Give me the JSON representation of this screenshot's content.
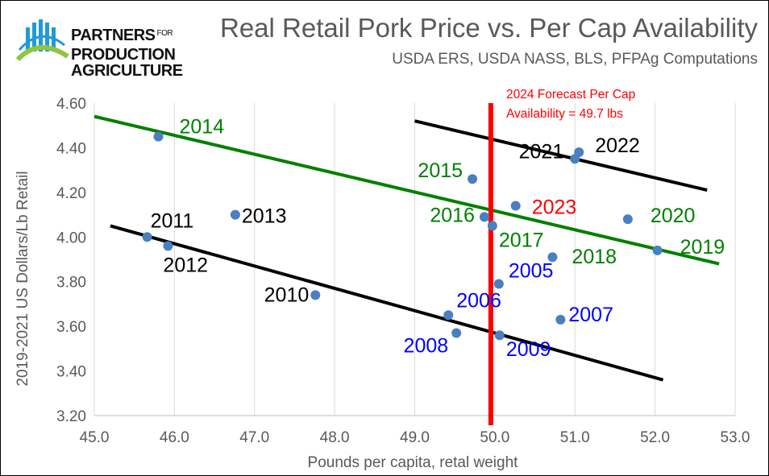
{
  "brand": {
    "line1": "PARTNERS",
    "for": "FOR",
    "line2": "PRODUCTION",
    "line3": "AGRICULTURE"
  },
  "chart_data": {
    "type": "scatter",
    "title": "Real Retail Pork Price vs. Per Cap Availability",
    "subtitle": "USDA ERS, USDA NASS, BLS, PFPAg Computations",
    "xlabel": "Pounds per capita, retal weight",
    "ylabel": "2019-2021  US Dollars/Lb Retail",
    "xlim": [
      45.0,
      53.0
    ],
    "ylim": [
      3.2,
      4.6
    ],
    "xticks": [
      "45.0",
      "46.0",
      "47.0",
      "48.0",
      "49.0",
      "50.0",
      "51.0",
      "52.0",
      "53.0"
    ],
    "yticks": [
      "3.20",
      "3.40",
      "3.60",
      "3.80",
      "4.00",
      "4.20",
      "4.40",
      "4.60"
    ],
    "grid": "vertical",
    "points": [
      {
        "label": "2005",
        "x": 50.05,
        "y": 3.79,
        "color": "#0000ff"
      },
      {
        "label": "2006",
        "x": 49.42,
        "y": 3.65,
        "color": "#0000ff"
      },
      {
        "label": "2007",
        "x": 50.82,
        "y": 3.63,
        "color": "#0000ff"
      },
      {
        "label": "2008",
        "x": 49.52,
        "y": 3.57,
        "color": "#0000ff"
      },
      {
        "label": "2009",
        "x": 50.06,
        "y": 3.56,
        "color": "#0000ff"
      },
      {
        "label": "2010",
        "x": 47.76,
        "y": 3.74,
        "color": "#000000"
      },
      {
        "label": "2011",
        "x": 45.66,
        "y": 4.0,
        "color": "#000000"
      },
      {
        "label": "2012",
        "x": 45.92,
        "y": 3.96,
        "color": "#000000"
      },
      {
        "label": "2013",
        "x": 46.76,
        "y": 4.1,
        "color": "#000000"
      },
      {
        "label": "2014",
        "x": 45.8,
        "y": 4.45,
        "color": "#008000"
      },
      {
        "label": "2015",
        "x": 49.72,
        "y": 4.26,
        "color": "#008000"
      },
      {
        "label": "2016",
        "x": 49.87,
        "y": 4.09,
        "color": "#008000"
      },
      {
        "label": "2017",
        "x": 49.97,
        "y": 4.05,
        "color": "#008000"
      },
      {
        "label": "2018",
        "x": 50.72,
        "y": 3.91,
        "color": "#008000"
      },
      {
        "label": "2019",
        "x": 52.03,
        "y": 3.94,
        "color": "#008000"
      },
      {
        "label": "2020",
        "x": 51.66,
        "y": 4.08,
        "color": "#008000"
      },
      {
        "label": "2021",
        "x": 51.0,
        "y": 4.35,
        "color": "#000000"
      },
      {
        "label": "2022",
        "x": 51.05,
        "y": 4.38,
        "color": "#000000"
      },
      {
        "label": "2023",
        "x": 50.26,
        "y": 4.14,
        "color": "#ff0000"
      }
    ],
    "trendlines": [
      {
        "color": "#008000",
        "from": [
          45.0,
          4.54
        ],
        "to": [
          52.8,
          3.88
        ]
      },
      {
        "color": "#000000",
        "from": [
          45.2,
          4.05
        ],
        "to": [
          52.1,
          3.36
        ]
      },
      {
        "color": "#000000",
        "from": [
          49.0,
          4.52
        ],
        "to": [
          52.65,
          4.21
        ]
      }
    ],
    "forecast_line": {
      "x": 49.95,
      "color": "#ff0000",
      "label_line1": "2024 Forecast Per Cap",
      "label_line2": "Availability = 49.7 lbs"
    }
  }
}
